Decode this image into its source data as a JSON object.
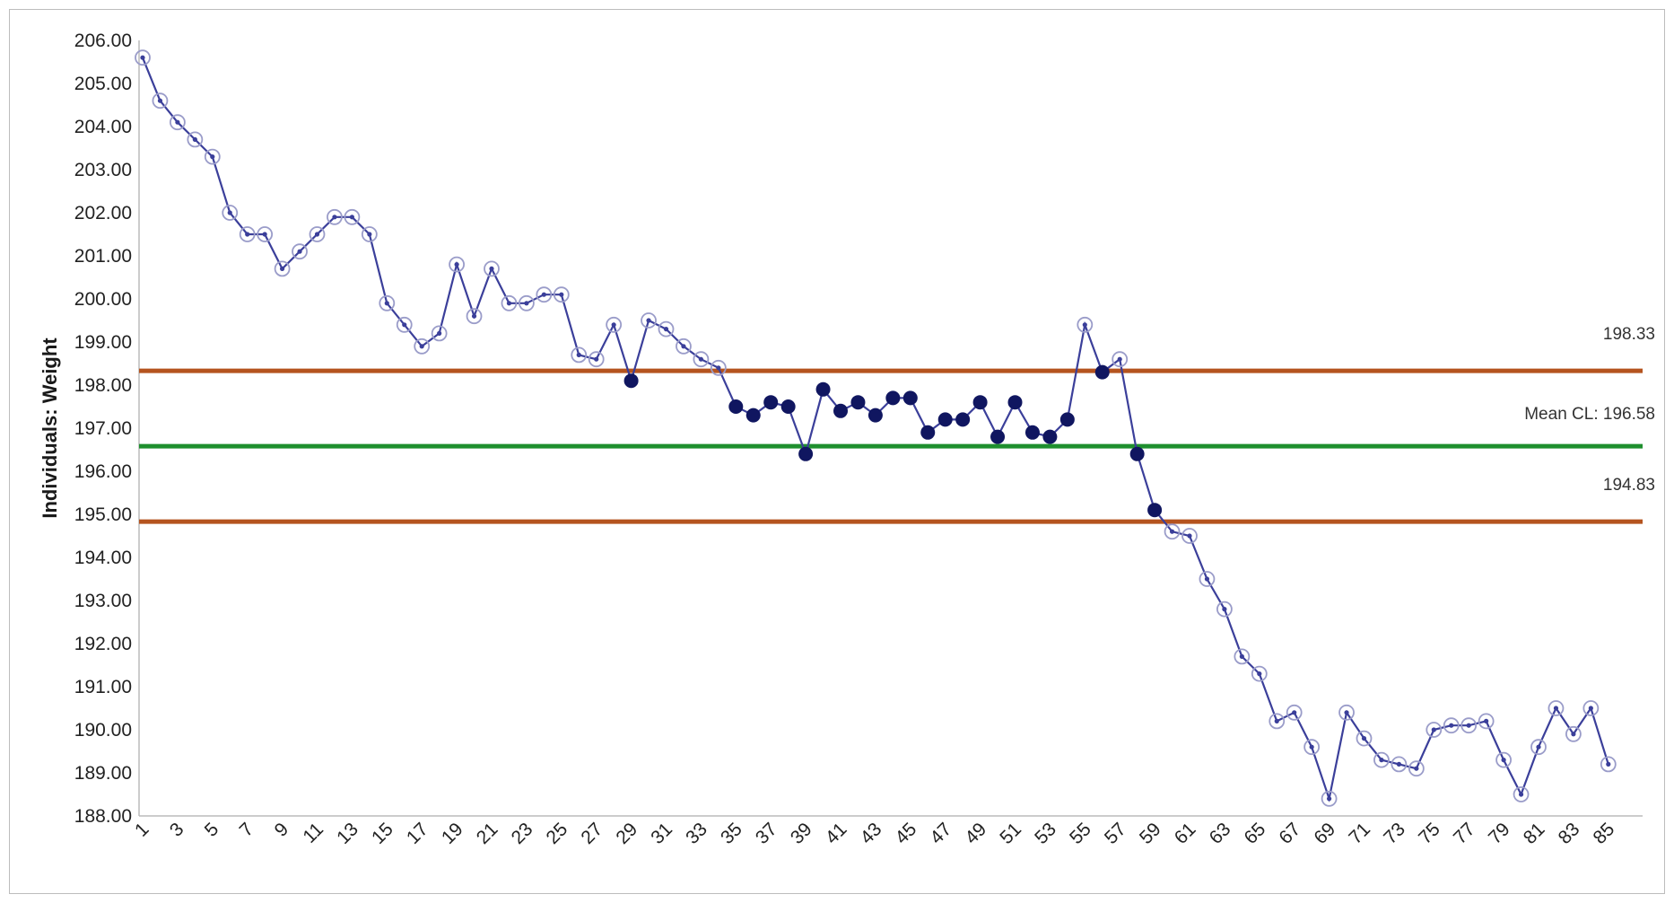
{
  "chart_data": {
    "type": "line",
    "ylabel": "Individuals: Weight",
    "xlabel": "",
    "ylim": [
      188.0,
      206.0
    ],
    "yticks": [
      "206.00",
      "205.00",
      "204.00",
      "203.00",
      "202.00",
      "201.00",
      "200.00",
      "199.00",
      "198.00",
      "197.00",
      "196.00",
      "195.00",
      "194.00",
      "193.00",
      "192.00",
      "191.00",
      "190.00",
      "189.00",
      "188.00"
    ],
    "xticks": [
      "1",
      "3",
      "5",
      "7",
      "9",
      "11",
      "13",
      "15",
      "17",
      "19",
      "21",
      "23",
      "25",
      "27",
      "29",
      "31",
      "33",
      "35",
      "37",
      "39",
      "41",
      "43",
      "45",
      "47",
      "49",
      "51",
      "53",
      "55",
      "57",
      "59",
      "61",
      "63",
      "65",
      "67",
      "69",
      "71",
      "73",
      "75",
      "77",
      "79",
      "81",
      "83",
      "85"
    ],
    "x": [
      1,
      2,
      3,
      4,
      5,
      6,
      7,
      8,
      9,
      10,
      11,
      12,
      13,
      14,
      15,
      16,
      17,
      18,
      19,
      20,
      21,
      22,
      23,
      24,
      25,
      26,
      27,
      28,
      29,
      30,
      31,
      32,
      33,
      34,
      35,
      36,
      37,
      38,
      39,
      40,
      41,
      42,
      43,
      44,
      45,
      46,
      47,
      48,
      49,
      50,
      51,
      52,
      53,
      54,
      55,
      56,
      57,
      58,
      59,
      60,
      61,
      62,
      63,
      64,
      65,
      66,
      67,
      68,
      69,
      70,
      71,
      72,
      73,
      74,
      75,
      76,
      77,
      78,
      79,
      80,
      81,
      82,
      83,
      84,
      85
    ],
    "series": [
      {
        "values": [
          205.6,
          204.6,
          204.1,
          203.7,
          203.3,
          202.0,
          201.5,
          201.5,
          200.7,
          201.1,
          201.5,
          201.9,
          201.9,
          201.5,
          199.9,
          199.4,
          198.9,
          199.2,
          200.8,
          199.6,
          200.7,
          199.9,
          199.9,
          200.1,
          200.1,
          198.7,
          198.6,
          199.4,
          198.1,
          199.5,
          199.3,
          198.9,
          198.6,
          198.4,
          197.5,
          197.3,
          197.6,
          197.5,
          196.4,
          197.9,
          197.4,
          197.6,
          197.3,
          197.7,
          197.7,
          196.9,
          197.2,
          197.2,
          197.6,
          196.8,
          197.6,
          196.9,
          196.8,
          197.2,
          199.4,
          198.3,
          198.6,
          196.4,
          195.1,
          194.6,
          194.5,
          193.5,
          192.8,
          191.7,
          191.3,
          190.2,
          190.4,
          189.6,
          188.4,
          190.4,
          189.8,
          189.3,
          189.2,
          189.1,
          190.0,
          190.1,
          190.1,
          190.2,
          189.3,
          188.5,
          189.6,
          190.5,
          189.9,
          190.5,
          189.2
        ],
        "flagged": [
          29,
          35,
          36,
          37,
          38,
          39,
          40,
          41,
          42,
          43,
          44,
          45,
          46,
          47,
          48,
          49,
          50,
          51,
          52,
          53,
          54,
          56,
          58,
          59
        ]
      }
    ],
    "limits": {
      "ucl": 198.33,
      "ucl_label": "198.33",
      "mean": 196.58,
      "mean_label": "Mean CL: 196.58",
      "lcl": 194.83,
      "lcl_label": "194.83"
    },
    "colors": {
      "series_line": "#3b3f9a",
      "marker_open": "#9a9cc9",
      "marker_filled": "#101660",
      "limit_line": "#b5541f",
      "mean_line": "#1e8f2e"
    },
    "grid": false,
    "legend": "none"
  }
}
